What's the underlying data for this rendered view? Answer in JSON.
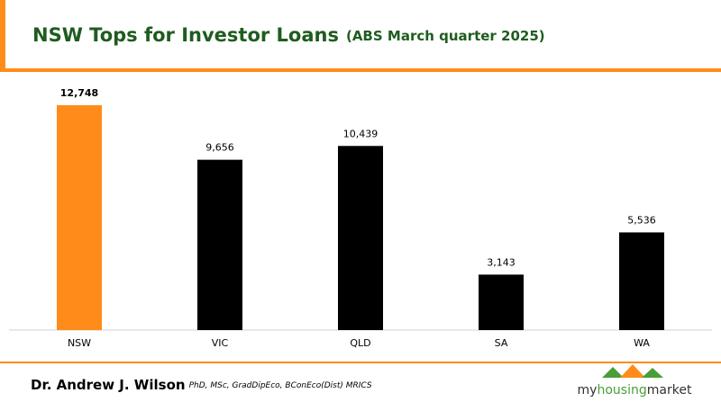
{
  "chart_data": {
    "type": "bar",
    "title": "NSW Tops for Investor Loans",
    "subtitle": "(ABS March quarter 2025)",
    "categories": [
      "NSW",
      "VIC",
      "QLD",
      "SA",
      "WA"
    ],
    "values": [
      12748,
      9656,
      10439,
      3143,
      5536
    ],
    "value_labels": [
      "12,748",
      "9,656",
      "10,439",
      "3,143",
      "5,536"
    ],
    "colors": [
      "#ff8c1a",
      "#000000",
      "#000000",
      "#000000",
      "#000000"
    ],
    "ylim": [
      0,
      12748
    ]
  },
  "footer": {
    "author": "Dr. Andrew J. Wilson",
    "credentials": "PhD, MSc, GradDipEco, BConEco(Dist) MRICS",
    "logo": [
      "my",
      "housing",
      "market"
    ]
  }
}
